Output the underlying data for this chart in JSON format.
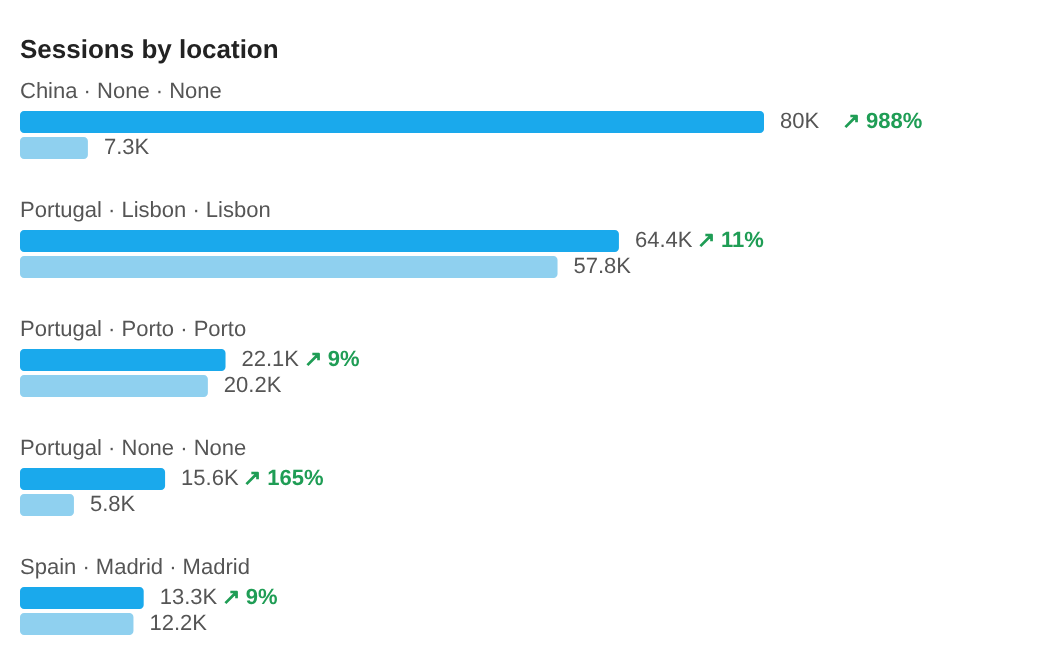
{
  "chart_data": {
    "type": "bar",
    "orientation": "horizontal",
    "title": "Sessions by location",
    "categories": [
      "China · None · None",
      "Portugal · Lisbon · Lisbon",
      "Portugal · Porto · Porto",
      "Portugal · None · None",
      "Spain · Madrid · Madrid"
    ],
    "series": [
      {
        "color": "#1aa9ec",
        "values": [
          80000,
          64400,
          22100,
          15600,
          13300
        ],
        "value_labels": [
          "80K",
          "64.4K",
          "22.1K",
          "15.6K",
          "13.3K"
        ]
      },
      {
        "color": "#8fd0ef",
        "values": [
          7300,
          57800,
          20200,
          5800,
          12200
        ],
        "value_labels": [
          "7.3K",
          "57.8K",
          "20.2K",
          "5.8K",
          "12.2K"
        ]
      }
    ],
    "annotations": [
      "↗ 988%",
      "↗ 11%",
      "↗ 9%",
      "↗ 165%",
      "↗ 9%"
    ]
  }
}
